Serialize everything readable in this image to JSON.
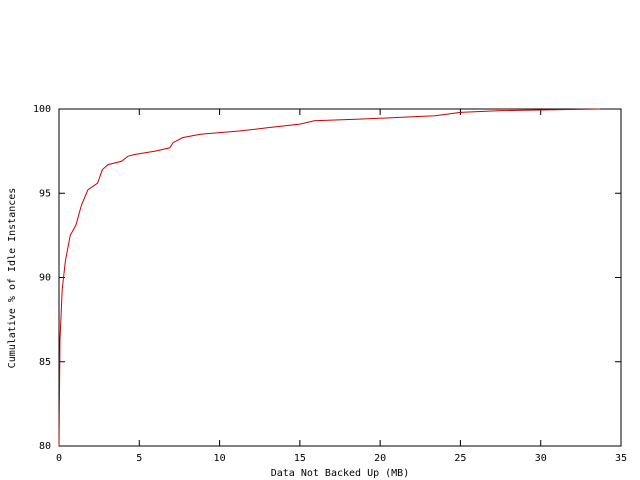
{
  "chart_data": {
    "type": "line",
    "xlabel": "Data Not Backed Up (MB)",
    "ylabel": "Cumulative % of Idle Instances",
    "x": [
      0,
      0.06,
      0.2,
      0.4,
      0.7,
      1.05,
      1.4,
      1.8,
      2.4,
      2.7,
      3.05,
      3.9,
      4.3,
      4.7,
      6.0,
      6.9,
      7.1,
      7.7,
      8.8,
      11.3,
      13.1,
      15.0,
      15.9,
      18.7,
      21.2,
      23.4,
      25.0,
      27.5,
      33.7
    ],
    "values": [
      80,
      86.3,
      89.3,
      91,
      92.5,
      93.1,
      94.3,
      95.2,
      95.6,
      96.4,
      96.7,
      96.9,
      97.2,
      97.3,
      97.5,
      97.7,
      98.0,
      98.3,
      98.5,
      98.7,
      98.9,
      99.1,
      99.3,
      99.4,
      99.5,
      99.6,
      99.8,
      99.9,
      100
    ],
    "color": "#cc0000",
    "xlim": [
      0,
      35
    ],
    "ylim": [
      80,
      100
    ],
    "xticks": [
      0,
      5,
      10,
      15,
      20,
      25,
      30,
      35
    ],
    "yticks": [
      80,
      85,
      90,
      95,
      100
    ]
  }
}
